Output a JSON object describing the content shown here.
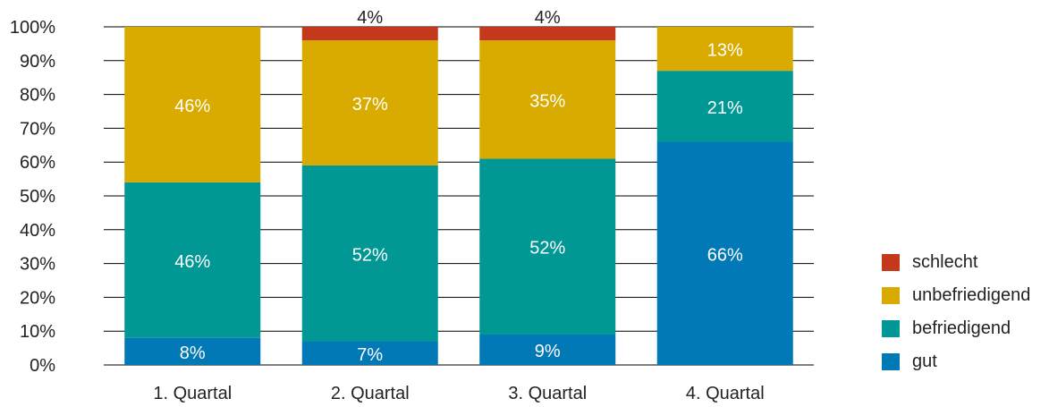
{
  "chart_data": {
    "type": "bar",
    "stacked": true,
    "normalized": true,
    "categories": [
      "1. Quartal",
      "2. Quartal",
      "3. Quartal",
      "4. Quartal"
    ],
    "yticks": [
      "0%",
      "10%",
      "20%",
      "30%",
      "40%",
      "50%",
      "60%",
      "70%",
      "80%",
      "90%",
      "100%"
    ],
    "ylim": [
      0,
      100
    ],
    "grid": true,
    "legend_position": "right",
    "series": [
      {
        "name": "gut",
        "color": "#0079b6",
        "values": [
          8,
          7,
          9,
          66
        ],
        "labels": [
          "8%",
          "7%",
          "9%",
          "66%"
        ],
        "label_color": "#ffffff"
      },
      {
        "name": "befriedigend",
        "color": "#009795",
        "values": [
          46,
          52,
          52,
          21
        ],
        "labels": [
          "46%",
          "52%",
          "52%",
          "21%"
        ],
        "label_color": "#ffffff"
      },
      {
        "name": "unbefriedigend",
        "color": "#d9ab00",
        "values": [
          46,
          37,
          35,
          13
        ],
        "labels": [
          "46%",
          "37%",
          "35%",
          "13%"
        ],
        "label_color": "#ffffff"
      },
      {
        "name": "schlecht",
        "color": "#c4391c",
        "values": [
          0,
          4,
          4,
          0
        ],
        "labels": [
          "",
          "4%",
          "4%",
          ""
        ],
        "label_color": "#222222"
      }
    ]
  },
  "legend": {
    "items": [
      {
        "label": "schlecht",
        "color": "#c4391c"
      },
      {
        "label": "unbefriedigend",
        "color": "#d9ab00"
      },
      {
        "label": "befriedigend",
        "color": "#009795"
      },
      {
        "label": "gut",
        "color": "#0079b6"
      }
    ]
  }
}
